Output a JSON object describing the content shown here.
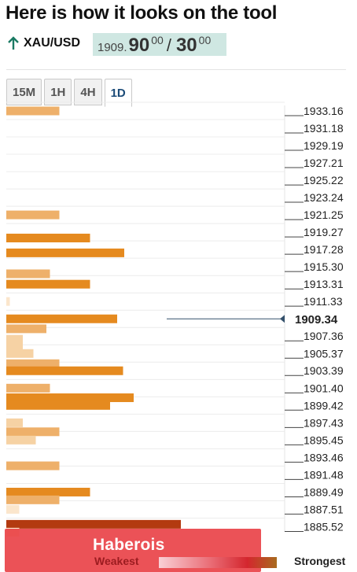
{
  "header": {
    "title": "Here is how it looks on the tool",
    "pair": "XAU/USD",
    "quote": {
      "int": "1909.",
      "bid_big": "90",
      "bid_sup": "00",
      "slash": "/",
      "ask_big": "30",
      "ask_sup": "00"
    },
    "direction_icon": "arrow-up-icon"
  },
  "tabs": [
    {
      "label": "15M",
      "active": false
    },
    {
      "label": "1H",
      "active": false
    },
    {
      "label": "4H",
      "active": false
    },
    {
      "label": "1D",
      "active": true
    }
  ],
  "chart_data": {
    "type": "bar",
    "orientation": "horizontal",
    "title": "",
    "price_levels": [
      "1933.16",
      "1931.18",
      "1929.19",
      "1927.21",
      "1925.22",
      "1923.24",
      "1921.25",
      "1919.27",
      "1917.28",
      "1915.30",
      "1913.31",
      "1911.33",
      "1909.34",
      "1907.36",
      "1905.37",
      "1903.39",
      "1901.40",
      "1899.42",
      "1897.43",
      "1895.45",
      "1893.46",
      "1891.48",
      "1889.49",
      "1887.51",
      "1885.52"
    ],
    "current_price": "1909.34",
    "bars": [
      {
        "level": 1933.16,
        "strength": 0.45
      },
      {
        "level": 1921.25,
        "strength": 0.45
      },
      {
        "level": 1918.6,
        "strength": 0.71
      },
      {
        "level": 1916.9,
        "strength": 1.0
      },
      {
        "level": 1914.5,
        "strength": 0.37
      },
      {
        "level": 1913.31,
        "strength": 0.71
      },
      {
        "level": 1911.33,
        "strength": 0.03
      },
      {
        "level": 1909.34,
        "strength": 0.94
      },
      {
        "level": 1908.2,
        "strength": 0.34
      },
      {
        "level": 1907.0,
        "strength": 0.14
      },
      {
        "level": 1906.3,
        "strength": 0.14
      },
      {
        "level": 1905.37,
        "strength": 0.23
      },
      {
        "level": 1904.2,
        "strength": 0.45
      },
      {
        "level": 1903.39,
        "strength": 0.99
      },
      {
        "level": 1901.4,
        "strength": 0.37
      },
      {
        "level": 1900.3,
        "strength": 1.08
      },
      {
        "level": 1899.42,
        "strength": 0.88
      },
      {
        "level": 1897.43,
        "strength": 0.14
      },
      {
        "level": 1896.4,
        "strength": 0.45
      },
      {
        "level": 1895.45,
        "strength": 0.25
      },
      {
        "level": 1892.5,
        "strength": 0.45
      },
      {
        "level": 1889.49,
        "strength": 0.71
      },
      {
        "level": 1888.6,
        "strength": 0.45
      },
      {
        "level": 1887.51,
        "strength": 0.11
      },
      {
        "level": 1885.8,
        "strength": 1.48
      },
      {
        "level": 1884.9,
        "strength": 0.11
      }
    ],
    "colors": {
      "strong": "#e58a1f",
      "medium": "#eeb06a",
      "light": "#f6d2a4",
      "faint": "#fbe6cc",
      "darkest": "#b33a10"
    },
    "legend": {
      "weakest": "Weakest",
      "strongest": "Strongest"
    }
  },
  "watermark": "Haberois"
}
